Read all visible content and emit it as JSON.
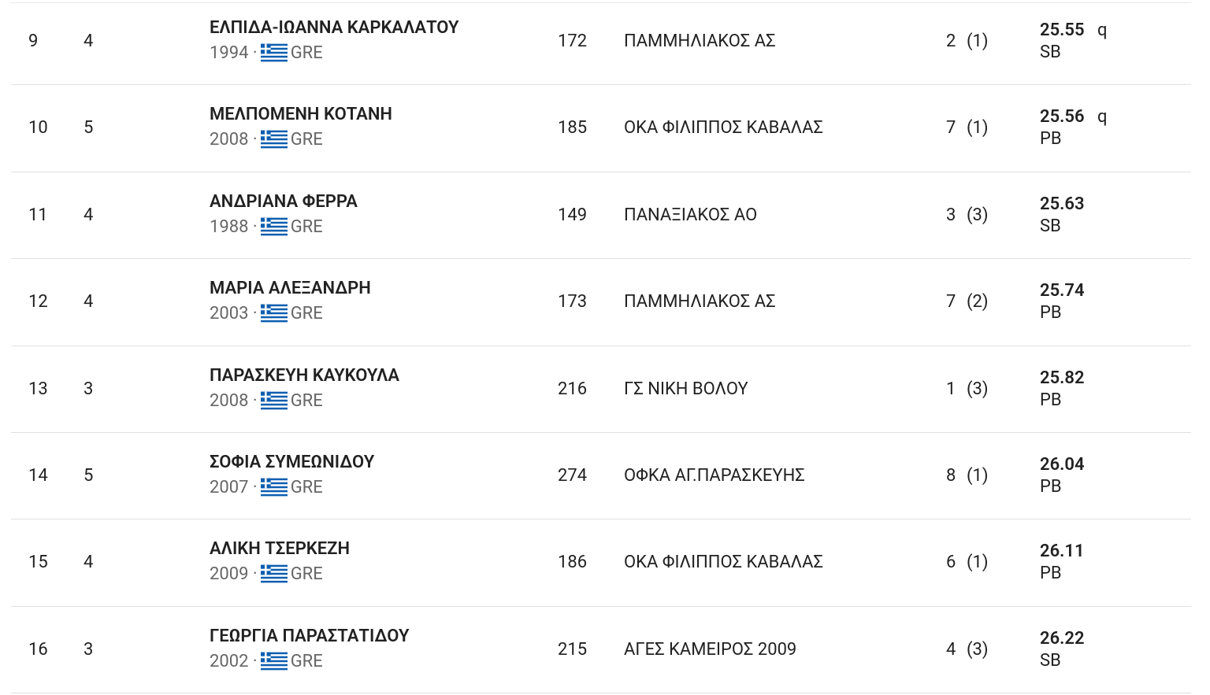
{
  "table": {
    "separator": "·",
    "rows": [
      {
        "rank": "9",
        "lane": "4",
        "name": "ΕΛΠΙΔΑ-ΙΩΑΝΝΑ ΚΑΡΚΑΛΑΤΟΥ",
        "year": "1994",
        "country": "GRE",
        "bib": "172",
        "club": "ΠΑΜΜΗΛΙΑΚΟΣ ΑΣ",
        "place": "2",
        "heat": "(1)",
        "time": "25.55",
        "q": "q",
        "record": "SB"
      },
      {
        "rank": "10",
        "lane": "5",
        "name": "ΜΕΛΠΟΜΕΝΗ ΚΟΤΑΝΗ",
        "year": "2008",
        "country": "GRE",
        "bib": "185",
        "club": "ΟΚΑ ΦΙΛΙΠΠΟΣ ΚΑΒΑΛΑΣ",
        "place": "7",
        "heat": "(1)",
        "time": "25.56",
        "q": "q",
        "record": "PB"
      },
      {
        "rank": "11",
        "lane": "4",
        "name": "ΑΝΔΡΙΑΝΑ ΦΕΡΡΑ",
        "year": "1988",
        "country": "GRE",
        "bib": "149",
        "club": "ΠΑΝΑΞΙΑΚΟΣ ΑΟ",
        "place": "3",
        "heat": "(3)",
        "time": "25.63",
        "record": "SB"
      },
      {
        "rank": "12",
        "lane": "4",
        "name": "ΜΑΡΙΑ ΑΛΕΞΑΝΔΡΗ",
        "year": "2003",
        "country": "GRE",
        "bib": "173",
        "club": "ΠΑΜΜΗΛΙΑΚΟΣ ΑΣ",
        "place": "7",
        "heat": "(2)",
        "time": "25.74",
        "record": "PB"
      },
      {
        "rank": "13",
        "lane": "3",
        "name": "ΠΑΡΑΣΚΕΥΗ ΚΑΥΚΟΥΛΑ",
        "year": "2008",
        "country": "GRE",
        "bib": "216",
        "club": "ΓΣ ΝΙΚΗ ΒΟΛΟΥ",
        "place": "1",
        "heat": "(3)",
        "time": "25.82",
        "record": "PB"
      },
      {
        "rank": "14",
        "lane": "5",
        "name": "ΣΟΦΙΑ ΣΥΜΕΩΝΙΔΟΥ",
        "year": "2007",
        "country": "GRE",
        "bib": "274",
        "club": "ΟΦΚΑ ΑΓ.ΠΑΡΑΣΚΕΥΗΣ",
        "place": "8",
        "heat": "(1)",
        "time": "26.04",
        "record": "PB"
      },
      {
        "rank": "15",
        "lane": "4",
        "name": "ΑΛΙΚΗ ΤΣΕΡΚΕΖΗ",
        "year": "2009",
        "country": "GRE",
        "bib": "186",
        "club": "ΟΚΑ ΦΙΛΙΠΠΟΣ ΚΑΒΑΛΑΣ",
        "place": "6",
        "heat": "(1)",
        "time": "26.11",
        "record": "PB"
      },
      {
        "rank": "16",
        "lane": "3",
        "name": "ΓΕΩΡΓΙΑ ΠΑΡΑΣΤΑΤΙΔΟΥ",
        "year": "2002",
        "country": "GRE",
        "bib": "215",
        "club": "ΑΓΕΣ ΚΑΜΕΙΡΟΣ 2009",
        "place": "4",
        "heat": "(3)",
        "time": "26.22",
        "record": "SB"
      }
    ]
  }
}
